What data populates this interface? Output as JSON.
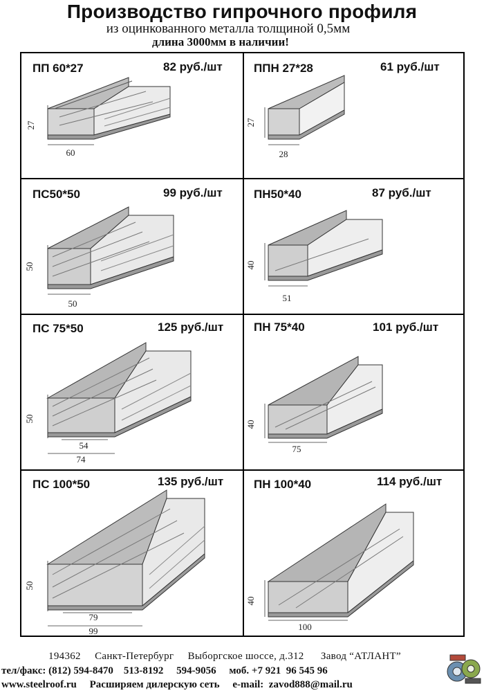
{
  "header": {
    "title": "Производство гипрочного профиля",
    "subtitle": "из оцинкованного металла толщиной 0,5мм",
    "availability": "длина 3000мм в наличии!"
  },
  "products": [
    {
      "name": "ПП 60*27",
      "price": "82 руб./шт",
      "height_label": "27",
      "width_label": "60"
    },
    {
      "name": "ППН 27*28",
      "price": "61 руб./шт",
      "height_label": "27",
      "width_label": "28"
    },
    {
      "name": "ПС50*50",
      "price": "99 руб./шт",
      "height_label": "50",
      "width_label": "50"
    },
    {
      "name": "ПН50*40",
      "price": "87 руб./шт",
      "height_label": "40",
      "width_label": "51"
    },
    {
      "name": "ПС 75*50",
      "price": "125 руб./шт",
      "height_label": "50",
      "inner_width_label": "54",
      "width_label": "74"
    },
    {
      "name": "ПН 75*40",
      "price": "101 руб./шт",
      "height_label": "40",
      "width_label": "75"
    },
    {
      "name": "ПС 100*50",
      "price": "135 руб./шт",
      "height_label": "50",
      "inner_width_label": "79",
      "width_label": "99"
    },
    {
      "name": "ПН 100*40",
      "price": "114 руб./шт",
      "height_label": "40",
      "width_label": "100"
    }
  ],
  "footer": {
    "address": "194362     Санкт-Петербург     Выборгское шоссе, д.312      Завод “АТЛАНТ”",
    "phones": "тел/факс: (812) 594-8470    513-8192     594-9056     моб. +7 921  96 545 96",
    "web": "www.steelroof.ru     Расширяем дилерскую сеть     e-mail:  zavod888@mail.ru"
  },
  "logo_icon": "metal-rolls-icon"
}
